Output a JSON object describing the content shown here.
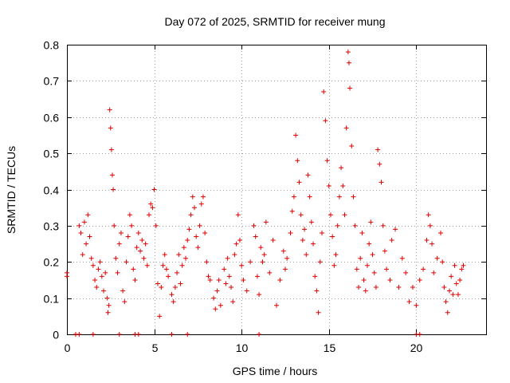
{
  "chart_data": {
    "type": "scatter",
    "title": "Day 072 of 2025, SRMTID for receiver mung",
    "xlabel": "GPS time / hours",
    "ylabel": "SRMTID / TECUs",
    "xlim": [
      0,
      24
    ],
    "ylim": [
      0,
      0.8
    ],
    "x_ticks": [
      "0",
      "5",
      "10",
      "15",
      "20"
    ],
    "y_ticks": [
      "0",
      "0.1",
      "0.2",
      "0.3",
      "0.4",
      "0.5",
      "0.6",
      "0.7",
      "0.8"
    ],
    "grid": true,
    "marker": "+",
    "color": "#e00000",
    "series": [
      {
        "name": "SRMTID",
        "points": [
          [
            0.0,
            0.17
          ],
          [
            0.0,
            0.16
          ],
          [
            0.7,
            0.3
          ],
          [
            0.8,
            0.28
          ],
          [
            0.9,
            0.22
          ],
          [
            1.0,
            0.31
          ],
          [
            1.1,
            0.25
          ],
          [
            1.2,
            0.33
          ],
          [
            1.3,
            0.27
          ],
          [
            1.4,
            0.21
          ],
          [
            1.5,
            0.19
          ],
          [
            1.6,
            0.15
          ],
          [
            1.7,
            0.13
          ],
          [
            1.8,
            0.18
          ],
          [
            1.9,
            0.2
          ],
          [
            2.0,
            0.16
          ],
          [
            2.1,
            0.12
          ],
          [
            2.2,
            0.17
          ],
          [
            2.3,
            0.1
          ],
          [
            2.35,
            0.06
          ],
          [
            2.4,
            0.08
          ],
          [
            2.45,
            0.62
          ],
          [
            2.5,
            0.57
          ],
          [
            2.55,
            0.51
          ],
          [
            2.6,
            0.44
          ],
          [
            2.65,
            0.4
          ],
          [
            2.7,
            0.3
          ],
          [
            2.8,
            0.21
          ],
          [
            2.9,
            0.17
          ],
          [
            3.0,
            0.25
          ],
          [
            3.1,
            0.28
          ],
          [
            3.2,
            0.12
          ],
          [
            3.3,
            0.09
          ],
          [
            3.4,
            0.2
          ],
          [
            3.5,
            0.27
          ],
          [
            3.6,
            0.33
          ],
          [
            3.7,
            0.3
          ],
          [
            3.8,
            0.18
          ],
          [
            3.9,
            0.15
          ],
          [
            4.0,
            0.24
          ],
          [
            4.1,
            0.28
          ],
          [
            4.2,
            0.23
          ],
          [
            4.3,
            0.26
          ],
          [
            4.4,
            0.21
          ],
          [
            4.5,
            0.25
          ],
          [
            4.6,
            0.19
          ],
          [
            4.7,
            0.33
          ],
          [
            4.8,
            0.36
          ],
          [
            4.9,
            0.35
          ],
          [
            5.0,
            0.4
          ],
          [
            5.1,
            0.3
          ],
          [
            5.2,
            0.14
          ],
          [
            5.3,
            0.05
          ],
          [
            5.4,
            0.13
          ],
          [
            5.5,
            0.19
          ],
          [
            5.6,
            0.22
          ],
          [
            5.7,
            0.18
          ],
          [
            5.8,
            0.16
          ],
          [
            6.0,
            0.11
          ],
          [
            6.1,
            0.09
          ],
          [
            6.2,
            0.13
          ],
          [
            6.3,
            0.17
          ],
          [
            6.4,
            0.22
          ],
          [
            6.5,
            0.14
          ],
          [
            6.6,
            0.19
          ],
          [
            6.7,
            0.24
          ],
          [
            6.8,
            0.21
          ],
          [
            6.9,
            0.26
          ],
          [
            7.0,
            0.29
          ],
          [
            7.1,
            0.33
          ],
          [
            7.2,
            0.38
          ],
          [
            7.3,
            0.35
          ],
          [
            7.4,
            0.27
          ],
          [
            7.5,
            0.24
          ],
          [
            7.6,
            0.3
          ],
          [
            7.7,
            0.36
          ],
          [
            7.8,
            0.38
          ],
          [
            7.9,
            0.28
          ],
          [
            8.0,
            0.2
          ],
          [
            8.1,
            0.16
          ],
          [
            8.2,
            0.15
          ],
          [
            8.4,
            0.1
          ],
          [
            8.5,
            0.07
          ],
          [
            8.6,
            0.12
          ],
          [
            8.7,
            0.15
          ],
          [
            8.8,
            0.08
          ],
          [
            9.0,
            0.18
          ],
          [
            9.1,
            0.14
          ],
          [
            9.2,
            0.21
          ],
          [
            9.3,
            0.16
          ],
          [
            9.4,
            0.13
          ],
          [
            9.5,
            0.09
          ],
          [
            9.6,
            0.22
          ],
          [
            9.7,
            0.25
          ],
          [
            9.8,
            0.33
          ],
          [
            9.9,
            0.26
          ],
          [
            10.0,
            0.19
          ],
          [
            10.1,
            0.15
          ],
          [
            10.3,
            0.12
          ],
          [
            10.5,
            0.2
          ],
          [
            10.7,
            0.3
          ],
          [
            10.8,
            0.27
          ],
          [
            10.9,
            0.16
          ],
          [
            11.0,
            0.11
          ],
          [
            11.1,
            0.24
          ],
          [
            11.2,
            0.2
          ],
          [
            11.3,
            0.22
          ],
          [
            11.4,
            0.31
          ],
          [
            11.6,
            0.17
          ],
          [
            11.8,
            0.26
          ],
          [
            12.0,
            0.08
          ],
          [
            12.2,
            0.15
          ],
          [
            12.4,
            0.23
          ],
          [
            12.5,
            0.18
          ],
          [
            12.6,
            0.21
          ],
          [
            12.8,
            0.28
          ],
          [
            12.9,
            0.34
          ],
          [
            13.0,
            0.38
          ],
          [
            13.1,
            0.55
          ],
          [
            13.2,
            0.48
          ],
          [
            13.3,
            0.42
          ],
          [
            13.4,
            0.33
          ],
          [
            13.5,
            0.26
          ],
          [
            13.6,
            0.29
          ],
          [
            13.7,
            0.22
          ],
          [
            13.8,
            0.44
          ],
          [
            13.9,
            0.38
          ],
          [
            14.0,
            0.31
          ],
          [
            14.1,
            0.25
          ],
          [
            14.2,
            0.16
          ],
          [
            14.3,
            0.12
          ],
          [
            14.4,
            0.06
          ],
          [
            14.5,
            0.2
          ],
          [
            14.6,
            0.28
          ],
          [
            14.7,
            0.67
          ],
          [
            14.8,
            0.59
          ],
          [
            14.9,
            0.48
          ],
          [
            15.0,
            0.41
          ],
          [
            15.1,
            0.33
          ],
          [
            15.2,
            0.27
          ],
          [
            15.3,
            0.19
          ],
          [
            15.4,
            0.22
          ],
          [
            15.5,
            0.3
          ],
          [
            15.6,
            0.38
          ],
          [
            15.7,
            0.46
          ],
          [
            15.8,
            0.41
          ],
          [
            15.9,
            0.33
          ],
          [
            16.0,
            0.57
          ],
          [
            16.1,
            0.78
          ],
          [
            16.15,
            0.75
          ],
          [
            16.2,
            0.68
          ],
          [
            16.3,
            0.52
          ],
          [
            16.4,
            0.38
          ],
          [
            16.5,
            0.3
          ],
          [
            16.6,
            0.18
          ],
          [
            16.7,
            0.13
          ],
          [
            16.8,
            0.21
          ],
          [
            16.9,
            0.28
          ],
          [
            17.0,
            0.15
          ],
          [
            17.1,
            0.12
          ],
          [
            17.2,
            0.19
          ],
          [
            17.3,
            0.25
          ],
          [
            17.4,
            0.31
          ],
          [
            17.5,
            0.22
          ],
          [
            17.6,
            0.17
          ],
          [
            17.7,
            0.13
          ],
          [
            17.8,
            0.51
          ],
          [
            17.9,
            0.47
          ],
          [
            18.0,
            0.42
          ],
          [
            18.1,
            0.3
          ],
          [
            18.2,
            0.23
          ],
          [
            18.3,
            0.18
          ],
          [
            18.5,
            0.15
          ],
          [
            18.6,
            0.26
          ],
          [
            18.8,
            0.29
          ],
          [
            19.0,
            0.13
          ],
          [
            19.2,
            0.21
          ],
          [
            19.4,
            0.17
          ],
          [
            19.6,
            0.09
          ],
          [
            19.8,
            0.13
          ],
          [
            20.0,
            0.08
          ],
          [
            20.2,
            0.15
          ],
          [
            20.4,
            0.18
          ],
          [
            20.6,
            0.26
          ],
          [
            20.7,
            0.33
          ],
          [
            20.8,
            0.3
          ],
          [
            20.9,
            0.25
          ],
          [
            21.0,
            0.17
          ],
          [
            21.2,
            0.21
          ],
          [
            21.4,
            0.28
          ],
          [
            21.5,
            0.2
          ],
          [
            21.6,
            0.13
          ],
          [
            21.7,
            0.09
          ],
          [
            21.8,
            0.06
          ],
          [
            21.9,
            0.12
          ],
          [
            22.0,
            0.16
          ],
          [
            22.1,
            0.11
          ],
          [
            22.2,
            0.19
          ],
          [
            22.3,
            0.14
          ],
          [
            22.4,
            0.11
          ],
          [
            22.5,
            0.15
          ],
          [
            22.6,
            0.18
          ],
          [
            22.7,
            0.19
          ],
          [
            0.5,
            0.0
          ],
          [
            0.7,
            0.0
          ],
          [
            1.5,
            0.0
          ],
          [
            3.0,
            0.0
          ],
          [
            3.9,
            0.0
          ],
          [
            4.1,
            0.0
          ],
          [
            6.0,
            0.0
          ],
          [
            6.9,
            0.0
          ],
          [
            11.0,
            0.0
          ],
          [
            20.0,
            0.0
          ],
          [
            20.2,
            0.0
          ]
        ]
      }
    ]
  }
}
